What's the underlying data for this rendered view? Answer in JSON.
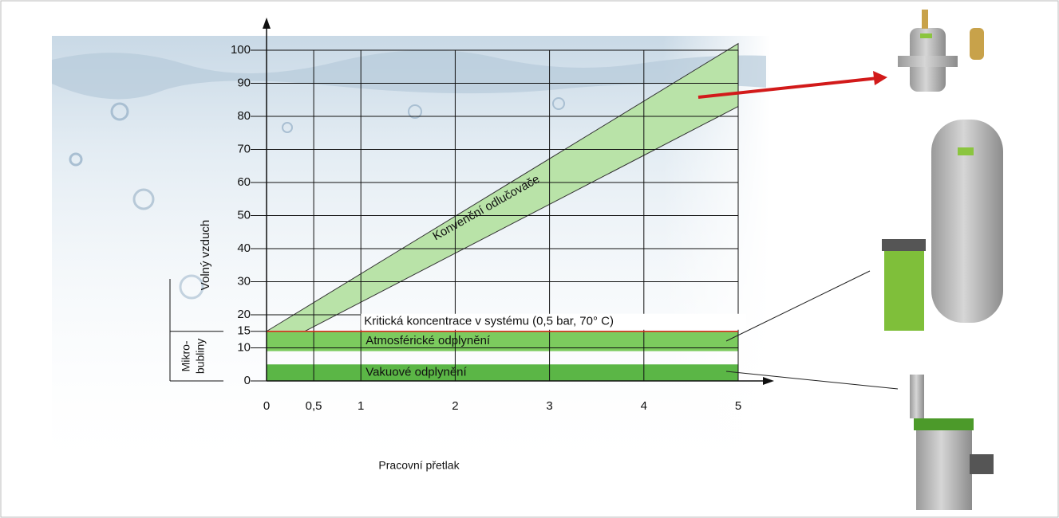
{
  "chart_data": {
    "type": "area",
    "x_label": "Pracovní přetlak",
    "y_label": "Volný vzduch",
    "bracket_label": [
      "Mikro-",
      "bubliny"
    ],
    "bracket_range": [
      0,
      15
    ],
    "x": [
      0,
      5
    ],
    "xlim": [
      0,
      5
    ],
    "ylim": [
      0,
      100
    ],
    "xticks": [
      0,
      {
        "value": 0.5,
        "label": "0,5"
      },
      1,
      2,
      3,
      4,
      5
    ],
    "yticks": [
      0,
      10,
      15,
      20,
      30,
      40,
      50,
      60,
      70,
      80,
      90,
      100
    ],
    "grid": true,
    "series": [
      {
        "name": "Konvenční odlučovače",
        "color": "#b9e3a8",
        "label_color": "#e0241c",
        "lower": [
          9,
          83
        ],
        "upper": [
          15,
          102
        ]
      },
      {
        "name": "Atmosférické odplynění",
        "color": "#7ccb5e",
        "label_color": "#111111",
        "lower": [
          9,
          9
        ],
        "upper": [
          15,
          15
        ]
      },
      {
        "name": "Vakuové odplynění",
        "color": "#5bb646",
        "label_color": "#111111",
        "lower": [
          0,
          0
        ],
        "upper": [
          5,
          5
        ]
      }
    ],
    "reference_line": {
      "label": "Kritická koncentrace v systému (0,5 bar, 70°  C)",
      "value": 15,
      "color": "#e0241c"
    }
  }
}
